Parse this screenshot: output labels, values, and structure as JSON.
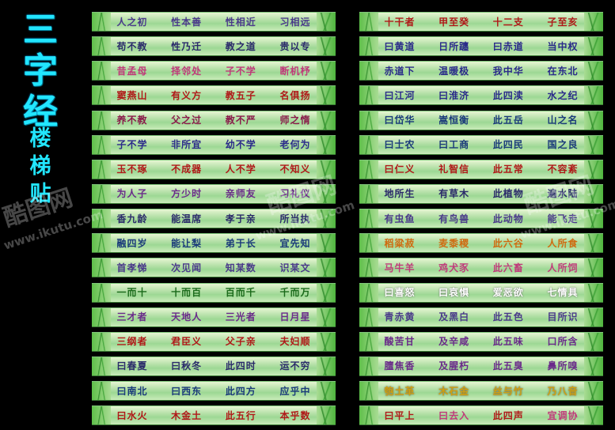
{
  "title": {
    "chars": [
      "三",
      "字",
      "经"
    ],
    "subtitle_chars": [
      "楼",
      "梯",
      "贴"
    ]
  },
  "watermark": {
    "logo": "酷图网",
    "url": "www.ikutu.com"
  },
  "palette": {
    "dark": "#2a2a6a",
    "green": "#1a7a1a",
    "red": "#b01818",
    "purple": "#6a2a8a",
    "orange": "#d06a10"
  },
  "left_rows": [
    [
      {
        "t": "人之初",
        "c": "#4a3a8a"
      },
      {
        "t": "性本善",
        "c": "#4a3a8a"
      },
      {
        "t": "性相近",
        "c": "#4a3a8a"
      },
      {
        "t": "习相远",
        "c": "#4a3a8a"
      }
    ],
    [
      {
        "t": "苟不教",
        "c": "#2a2a6a"
      },
      {
        "t": "性乃迁",
        "c": "#2a2a6a"
      },
      {
        "t": "教之道",
        "c": "#2a2a6a"
      },
      {
        "t": "贵以专",
        "c": "#2a2a6a"
      }
    ],
    [
      {
        "t": "昔孟母",
        "c": "#c03a7a"
      },
      {
        "t": "择邻处",
        "c": "#c03a7a"
      },
      {
        "t": "子不学",
        "c": "#c03a7a"
      },
      {
        "t": "断机杼",
        "c": "#c03a7a"
      }
    ],
    [
      {
        "t": "窦燕山",
        "c": "#b01818"
      },
      {
        "t": "有义方",
        "c": "#b01818"
      },
      {
        "t": "教五子",
        "c": "#b01818"
      },
      {
        "t": "名俱扬",
        "c": "#b01818"
      }
    ],
    [
      {
        "t": "养不教",
        "c": "#8a1a4a"
      },
      {
        "t": "父之过",
        "c": "#8a1a4a"
      },
      {
        "t": "教不严",
        "c": "#8a1a4a"
      },
      {
        "t": "师之惰",
        "c": "#8a1a4a"
      }
    ],
    [
      {
        "t": "子不学",
        "c": "#2a2a8a"
      },
      {
        "t": "非所宜",
        "c": "#2a2a8a"
      },
      {
        "t": "幼不学",
        "c": "#2a2a8a"
      },
      {
        "t": "老何为",
        "c": "#2a2a8a"
      }
    ],
    [
      {
        "t": "玉不琢",
        "c": "#b01818"
      },
      {
        "t": "不成器",
        "c": "#b01818"
      },
      {
        "t": "人不学",
        "c": "#b01818"
      },
      {
        "t": "不知义",
        "c": "#b01818"
      }
    ],
    [
      {
        "t": "为人子",
        "c": "#6a2a8a"
      },
      {
        "t": "方少时",
        "c": "#6a2a8a"
      },
      {
        "t": "亲师友",
        "c": "#6a2a8a"
      },
      {
        "t": "习礼仪",
        "c": "#6a2a8a"
      }
    ],
    [
      {
        "t": "香九龄",
        "c": "#2a2a6a"
      },
      {
        "t": "能温席",
        "c": "#2a2a6a"
      },
      {
        "t": "孝于亲",
        "c": "#2a2a6a"
      },
      {
        "t": "所当执",
        "c": "#2a2a6a"
      }
    ],
    [
      {
        "t": "融四岁",
        "c": "#1a3a7a"
      },
      {
        "t": "能让梨",
        "c": "#1a3a7a"
      },
      {
        "t": "弟于长",
        "c": "#1a3a7a"
      },
      {
        "t": "宜先知",
        "c": "#1a3a7a"
      }
    ],
    [
      {
        "t": "首孝悌",
        "c": "#4a3a8a"
      },
      {
        "t": "次见闻",
        "c": "#4a3a8a"
      },
      {
        "t": "知某数",
        "c": "#4a3a8a"
      },
      {
        "t": "识某文",
        "c": "#4a3a8a"
      }
    ],
    [
      {
        "t": "一而十",
        "c": "#1a6a1a"
      },
      {
        "t": "十而百",
        "c": "#1a6a1a"
      },
      {
        "t": "百而千",
        "c": "#1a6a1a"
      },
      {
        "t": "千而万",
        "c": "#1a6a1a"
      }
    ],
    [
      {
        "t": "三才者",
        "c": "#6a2a8a"
      },
      {
        "t": "天地人",
        "c": "#6a2a8a"
      },
      {
        "t": "三光者",
        "c": "#6a2a8a"
      },
      {
        "t": "日月星",
        "c": "#6a2a8a"
      }
    ],
    [
      {
        "t": "三纲者",
        "c": "#b01818"
      },
      {
        "t": "君臣义",
        "c": "#b01818"
      },
      {
        "t": "父子亲",
        "c": "#b01818"
      },
      {
        "t": "夫妇顺",
        "c": "#b01818"
      }
    ],
    [
      {
        "t": "曰春夏",
        "c": "#2a2a6a"
      },
      {
        "t": "曰秋冬",
        "c": "#2a2a6a"
      },
      {
        "t": "此四时",
        "c": "#2a2a6a"
      },
      {
        "t": "运不穷",
        "c": "#2a2a6a"
      }
    ],
    [
      {
        "t": "曰南北",
        "c": "#1a3a7a"
      },
      {
        "t": "曰西东",
        "c": "#1a3a7a"
      },
      {
        "t": "此四方",
        "c": "#1a3a7a"
      },
      {
        "t": "应乎中",
        "c": "#1a3a7a"
      }
    ],
    [
      {
        "t": "曰水火",
        "c": "#b01818"
      },
      {
        "t": "木金土",
        "c": "#b01818"
      },
      {
        "t": "此五行",
        "c": "#b01818"
      },
      {
        "t": "本乎数",
        "c": "#b01818"
      }
    ]
  ],
  "right_rows": [
    [
      {
        "t": "十干者",
        "c": "#b01818"
      },
      {
        "t": "甲至癸",
        "c": "#b01818"
      },
      {
        "t": "十二支",
        "c": "#b01818"
      },
      {
        "t": "子至亥",
        "c": "#b01818"
      }
    ],
    [
      {
        "t": "曰黄道",
        "c": "#2a2a8a"
      },
      {
        "t": "日所躔",
        "c": "#2a2a8a"
      },
      {
        "t": "曰赤道",
        "c": "#2a2a8a"
      },
      {
        "t": "当中权",
        "c": "#2a2a8a"
      }
    ],
    [
      {
        "t": "赤道下",
        "c": "#2a2a8a"
      },
      {
        "t": "温暖极",
        "c": "#2a2a8a"
      },
      {
        "t": "我中华",
        "c": "#2a2a8a"
      },
      {
        "t": "在东北",
        "c": "#2a2a8a"
      }
    ],
    [
      {
        "t": "曰江河",
        "c": "#2a2a8a"
      },
      {
        "t": "曰淮济",
        "c": "#2a2a8a"
      },
      {
        "t": "此四渎",
        "c": "#2a2a8a"
      },
      {
        "t": "水之纪",
        "c": "#2a2a8a"
      }
    ],
    [
      {
        "t": "曰岱华",
        "c": "#1a3a7a"
      },
      {
        "t": "嵩恒衡",
        "c": "#1a3a7a"
      },
      {
        "t": "此五岳",
        "c": "#1a3a7a"
      },
      {
        "t": "山之名",
        "c": "#1a3a7a"
      }
    ],
    [
      {
        "t": "曰士农",
        "c": "#1a3a7a"
      },
      {
        "t": "曰工商",
        "c": "#1a3a7a"
      },
      {
        "t": "此四民",
        "c": "#1a3a7a"
      },
      {
        "t": "国之良",
        "c": "#1a3a7a"
      }
    ],
    [
      {
        "t": "曰仁义",
        "c": "#b01818"
      },
      {
        "t": "礼智信",
        "c": "#b01818"
      },
      {
        "t": "此五常",
        "c": "#b01818"
      },
      {
        "t": "不容紊",
        "c": "#b01818"
      }
    ],
    [
      {
        "t": "地所生",
        "c": "#2a2a6a"
      },
      {
        "t": "有草木",
        "c": "#2a2a6a"
      },
      {
        "t": "此植物",
        "c": "#2a2a6a"
      },
      {
        "t": "遍水陆",
        "c": "#2a2a6a"
      }
    ],
    [
      {
        "t": "有虫鱼",
        "c": "#4a3a8a"
      },
      {
        "t": "有鸟兽",
        "c": "#4a3a8a"
      },
      {
        "t": "此动物",
        "c": "#4a3a8a"
      },
      {
        "t": "能飞走",
        "c": "#4a3a8a"
      }
    ],
    [
      {
        "t": "稻粱菽",
        "c": "#d06a10"
      },
      {
        "t": "麦黍稷",
        "c": "#d06a10"
      },
      {
        "t": "此六谷",
        "c": "#d06a10"
      },
      {
        "t": "人所食",
        "c": "#d06a10"
      }
    ],
    [
      {
        "t": "马牛羊",
        "c": "#c03a7a"
      },
      {
        "t": "鸡犬豕",
        "c": "#c03a7a"
      },
      {
        "t": "此六畜",
        "c": "#c03a7a"
      },
      {
        "t": "人所饲",
        "c": "#c03a7a"
      }
    ],
    [
      {
        "t": "曰喜怒",
        "c": "#ffffff"
      },
      {
        "t": "曰哀惧",
        "c": "#ffffff"
      },
      {
        "t": "爱恶欲",
        "c": "#ffffff"
      },
      {
        "t": "七情具",
        "c": "#ffffff"
      }
    ],
    [
      {
        "t": "青赤黄",
        "c": "#4a3a8a"
      },
      {
        "t": "及黑白",
        "c": "#4a3a8a"
      },
      {
        "t": "此五色",
        "c": "#4a3a8a"
      },
      {
        "t": "目所识",
        "c": "#4a3a8a"
      }
    ],
    [
      {
        "t": "酸苦甘",
        "c": "#6a2a8a"
      },
      {
        "t": "及辛咸",
        "c": "#6a2a8a"
      },
      {
        "t": "此五味",
        "c": "#6a2a8a"
      },
      {
        "t": "口所含",
        "c": "#6a2a8a"
      }
    ],
    [
      {
        "t": "膻焦香",
        "c": "#6a2a8a"
      },
      {
        "t": "及腥朽",
        "c": "#6a2a8a"
      },
      {
        "t": "此五臭",
        "c": "#6a2a8a"
      },
      {
        "t": "鼻所嗅",
        "c": "#6a2a8a"
      }
    ],
    [
      {
        "t": "匏土革",
        "c": "#d0a010"
      },
      {
        "t": "木石金",
        "c": "#d0a010"
      },
      {
        "t": "丝与竹",
        "c": "#d0a010"
      },
      {
        "t": "乃八音",
        "c": "#d0a010"
      }
    ],
    [
      {
        "t": "曰平上",
        "c": "#b01818"
      },
      {
        "t": "曰去入",
        "c": "#c03a7a"
      },
      {
        "t": "此四声",
        "c": "#b01818"
      },
      {
        "t": "宜调协",
        "c": "#c03a7a"
      }
    ]
  ]
}
